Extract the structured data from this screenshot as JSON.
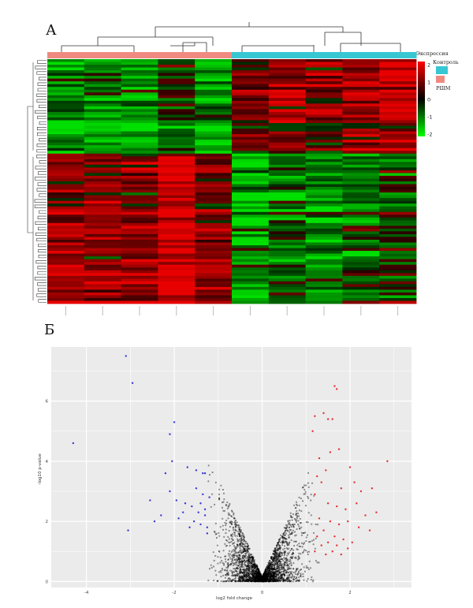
{
  "panels": {
    "a_label": "А",
    "b_label": "Б"
  },
  "chart_data": [
    {
      "type": "heatmap",
      "panel": "А",
      "columns": 10,
      "column_groups": [
        "РШМ",
        "РШМ",
        "РШМ",
        "РШМ",
        "РШМ",
        "Контроль",
        "Контроль",
        "Контроль",
        "Контроль",
        "Контроль"
      ],
      "legend": {
        "title": "Экспрессия",
        "ticks": [
          "2",
          "1",
          "0",
          "-1",
          "-2"
        ],
        "groups": [
          {
            "name": "Контроль",
            "color": "#36c7d3"
          },
          {
            "name": "РШМ",
            "color": "#f08a80"
          }
        ]
      },
      "colors": {
        "high": "#e80000",
        "mid": "#000000",
        "low": "#00e000"
      },
      "blocks": [
        {
          "rows": 34,
          "group_means": {
            "РШМ": -0.9,
            "Контроль": 1.1
          }
        },
        {
          "rows": 54,
          "group_means": {
            "РШМ": 1.3,
            "Контроль": -0.9
          }
        }
      ],
      "value_range": [
        -2,
        2
      ]
    },
    {
      "type": "scatter",
      "panel": "Б",
      "xlabel": "log2 fold change",
      "ylabel": "-log10 p-value",
      "xticks": [
        "-4",
        "-2",
        "0",
        "2"
      ],
      "yticks": [
        "0",
        "2",
        "4",
        "6"
      ],
      "xlim": [
        -4.8,
        3.4
      ],
      "ylim": [
        -0.2,
        7.8
      ],
      "grid": true,
      "series": [
        {
          "color": "#3b3bd8",
          "points": [
            [
              -3.1,
              7.5
            ],
            [
              -2.95,
              6.6
            ],
            [
              -4.3,
              4.6
            ],
            [
              -3.05,
              1.7
            ],
            [
              -2.0,
              5.3
            ],
            [
              -2.1,
              4.9
            ],
            [
              -2.05,
              4.0
            ],
            [
              -2.2,
              3.6
            ],
            [
              -1.7,
              3.8
            ],
            [
              -1.5,
              3.7
            ],
            [
              -1.35,
              3.6
            ],
            [
              -1.3,
              3.6
            ],
            [
              -2.55,
              2.7
            ],
            [
              -2.1,
              3.0
            ],
            [
              -1.95,
              2.7
            ],
            [
              -1.75,
              2.6
            ],
            [
              -1.6,
              2.5
            ],
            [
              -1.45,
              2.3
            ],
            [
              -1.3,
              2.2
            ],
            [
              -2.3,
              2.2
            ],
            [
              -2.45,
              2.0
            ],
            [
              -1.9,
              2.1
            ],
            [
              -1.8,
              2.3
            ],
            [
              -1.55,
              2.0
            ],
            [
              -1.4,
              1.9
            ],
            [
              -1.25,
              1.8
            ],
            [
              -1.65,
              1.8
            ],
            [
              -1.35,
              2.9
            ],
            [
              -1.5,
              3.1
            ],
            [
              -1.2,
              2.8
            ],
            [
              -1.25,
              1.6
            ],
            [
              -1.4,
              2.6
            ],
            [
              -1.3,
              2.4
            ]
          ]
        },
        {
          "color": "#e63232",
          "points": [
            [
              1.65,
              6.5
            ],
            [
              1.7,
              6.4
            ],
            [
              1.4,
              5.6
            ],
            [
              1.2,
              5.5
            ],
            [
              1.5,
              5.4
            ],
            [
              1.6,
              5.4
            ],
            [
              1.15,
              5.0
            ],
            [
              2.85,
              4.0
            ],
            [
              1.3,
              4.1
            ],
            [
              1.55,
              4.3
            ],
            [
              1.75,
              4.4
            ],
            [
              2.0,
              3.8
            ],
            [
              1.45,
              3.7
            ],
            [
              1.25,
              3.5
            ],
            [
              1.35,
              3.3
            ],
            [
              1.8,
              3.1
            ],
            [
              2.1,
              3.3
            ],
            [
              2.25,
              3.0
            ],
            [
              2.5,
              3.1
            ],
            [
              1.2,
              2.9
            ],
            [
              1.5,
              2.6
            ],
            [
              1.7,
              2.5
            ],
            [
              1.9,
              2.4
            ],
            [
              2.15,
              2.6
            ],
            [
              2.35,
              2.2
            ],
            [
              2.6,
              2.3
            ],
            [
              1.3,
              2.1
            ],
            [
              1.55,
              2.0
            ],
            [
              1.75,
              1.9
            ],
            [
              1.95,
              2.0
            ],
            [
              2.2,
              1.8
            ],
            [
              2.45,
              1.7
            ],
            [
              1.4,
              1.7
            ],
            [
              1.65,
              1.5
            ],
            [
              1.85,
              1.4
            ],
            [
              2.05,
              1.3
            ],
            [
              1.25,
              1.5
            ],
            [
              1.5,
              1.3
            ],
            [
              1.35,
              1.2
            ],
            [
              1.7,
              1.2
            ],
            [
              1.95,
              1.1
            ],
            [
              1.2,
              1.0
            ],
            [
              1.45,
              0.9
            ],
            [
              1.6,
              1.0
            ],
            [
              1.8,
              0.9
            ]
          ]
        },
        {
          "color": "#000000",
          "n": 2600,
          "x_range": [
            -1.25,
            1.3
          ],
          "y_range": [
            0,
            4.6
          ]
        }
      ]
    }
  ]
}
